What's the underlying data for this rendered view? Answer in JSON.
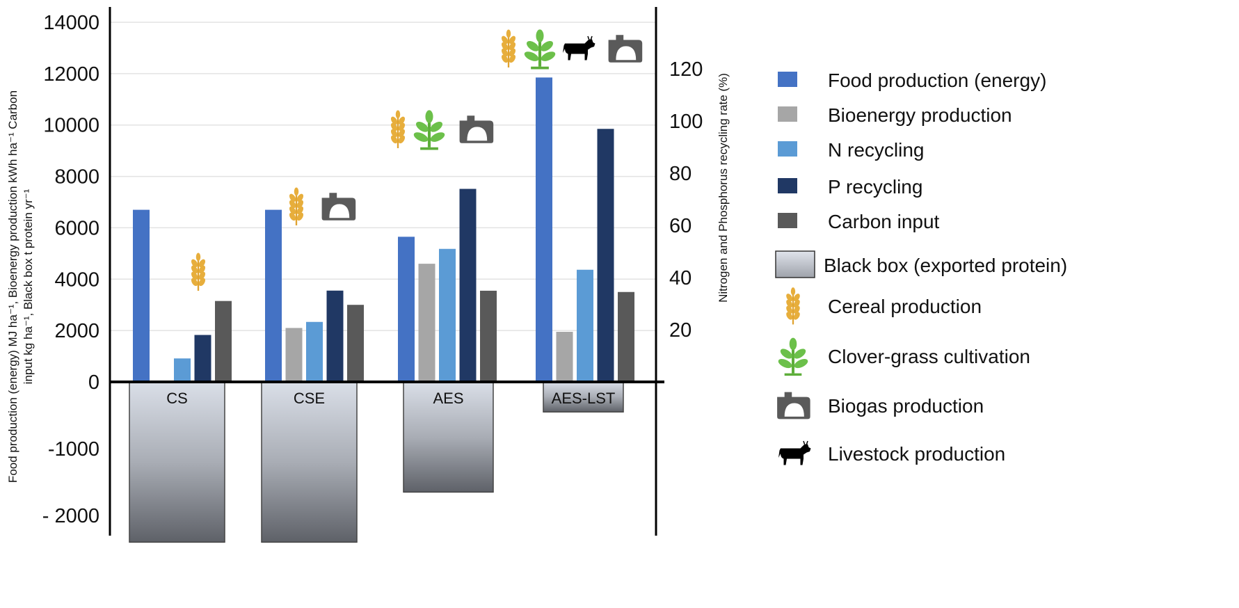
{
  "chart_data": {
    "type": "bar",
    "categories": [
      "CS",
      "CSE",
      "AES",
      "AES-LST"
    ],
    "series": [
      {
        "name": "Food production (energy)",
        "axis": "left",
        "color": "#4472C4",
        "values": [
          6700,
          6700,
          5650,
          11850
        ]
      },
      {
        "name": "Bioenergy production",
        "axis": "left",
        "color": "#A6A6A6",
        "values": [
          0,
          2100,
          4600,
          1950
        ]
      },
      {
        "name": "N recycling",
        "axis": "right",
        "color": "#5B9BD5",
        "values": [
          9,
          23,
          51,
          43
        ]
      },
      {
        "name": "P recycling",
        "axis": "right",
        "color": "#203864",
        "values": [
          18,
          35,
          74,
          97
        ]
      },
      {
        "name": "Carbon input",
        "axis": "left",
        "color": "#595959",
        "values": [
          3150,
          3000,
          3550,
          3500
        ]
      }
    ],
    "black_box": {
      "name": "Black box (exported protein)",
      "values": [
        -2400,
        -2400,
        -1650,
        -450
      ]
    },
    "icons": [
      [
        "wheat-icon"
      ],
      [
        "wheat-icon",
        "biogas-icon"
      ],
      [
        "wheat-icon",
        "clover-icon",
        "biogas-icon"
      ],
      [
        "wheat-icon",
        "clover-icon",
        "cow-icon",
        "biogas-icon"
      ]
    ],
    "left_axis": {
      "label_line1": "Food production (energy) MJ ha⁻¹,  Bioenergy production kWh ha⁻¹ Carbon",
      "label_line2": "input kg ha⁻¹, Black box  t protein yr⁻¹",
      "ticks": [
        {
          "value": 14000,
          "label": "14000"
        },
        {
          "value": 12000,
          "label": "12000"
        },
        {
          "value": 10000,
          "label": "10000"
        },
        {
          "value": 8000,
          "label": "8000"
        },
        {
          "value": 6000,
          "label": "6000"
        },
        {
          "value": 4000,
          "label": "4000"
        },
        {
          "value": 2000,
          "label": "2000"
        },
        {
          "value": 0,
          "label": "0"
        },
        {
          "value": -1000,
          "label": "-1000"
        },
        {
          "value": -2000,
          "label": "- 2000"
        }
      ],
      "ylim": [
        -2400,
        14500
      ]
    },
    "right_axis": {
      "label": "Nitrogen and Phosphorus  recycling rate (%)",
      "ticks": [
        {
          "value": 120,
          "label": "120"
        },
        {
          "value": 100,
          "label": "100"
        },
        {
          "value": 80,
          "label": "80"
        },
        {
          "value": 60,
          "label": "60"
        },
        {
          "value": 40,
          "label": "40"
        },
        {
          "value": 20,
          "label": "20"
        }
      ],
      "ylim": [
        0,
        145
      ]
    },
    "grid": true,
    "legend": {
      "placement": "right",
      "items": [
        {
          "label": "Food production (energy)",
          "kind": "swatch",
          "color": "#4472C4"
        },
        {
          "label": "Bioenergy production",
          "kind": "swatch",
          "color": "#A6A6A6"
        },
        {
          "label": "N recycling",
          "kind": "swatch",
          "color": "#5B9BD5"
        },
        {
          "label": "P recycling",
          "kind": "swatch",
          "color": "#203864"
        },
        {
          "label": "Carbon input",
          "kind": "swatch",
          "color": "#595959"
        },
        {
          "label": "Black box (exported protein)",
          "kind": "box"
        },
        {
          "label": "Cereal production",
          "kind": "wheat-icon"
        },
        {
          "label": "Clover-grass cultivation",
          "kind": "clover-icon"
        },
        {
          "label": "Biogas production",
          "kind": "biogas-icon"
        },
        {
          "label": "Livestock production",
          "kind": "cow-icon"
        }
      ]
    }
  }
}
